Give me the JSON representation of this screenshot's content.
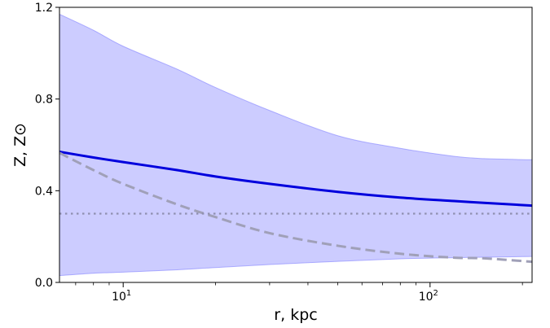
{
  "chart_data": {
    "type": "line",
    "title": "",
    "xlabel": "r, kpc",
    "ylabel": "Z, Z⊙",
    "x_scale": "log",
    "xlim": [
      6.2,
      215
    ],
    "ylim": [
      0.0,
      1.2
    ],
    "x_ticks": [
      {
        "value": 10,
        "base": "10",
        "exp": "1"
      },
      {
        "value": 100,
        "base": "10",
        "exp": "2"
      }
    ],
    "y_ticks": [
      {
        "value": 0.0,
        "label": "0.0"
      },
      {
        "value": 0.4,
        "label": "0.4"
      },
      {
        "value": 0.8,
        "label": "0.8"
      },
      {
        "value": 1.2,
        "label": "1.2"
      }
    ],
    "grid": false,
    "x": [
      6.2,
      8,
      10,
      15,
      20,
      30,
      50,
      80,
      120,
      150,
      215
    ],
    "band": {
      "upper": [
        1.17,
        1.1,
        1.03,
        0.93,
        0.85,
        0.75,
        0.64,
        0.585,
        0.55,
        0.54,
        0.535
      ],
      "lower": [
        0.03,
        0.04,
        0.045,
        0.055,
        0.065,
        0.078,
        0.092,
        0.103,
        0.108,
        0.11,
        0.113
      ],
      "color": "#8080ff"
    },
    "series": [
      {
        "style": "solid",
        "color": "#0000dd",
        "values": [
          0.57,
          0.545,
          0.525,
          0.49,
          0.462,
          0.43,
          0.395,
          0.37,
          0.355,
          0.347,
          0.335
        ]
      },
      {
        "style": "dashed",
        "color": "#a0a0b8",
        "values": [
          0.565,
          0.49,
          0.43,
          0.34,
          0.285,
          0.215,
          0.16,
          0.125,
          0.108,
          0.105,
          0.09
        ]
      },
      {
        "style": "dotted",
        "color": "#9090b0",
        "values": [
          0.3,
          0.3,
          0.3,
          0.3,
          0.3,
          0.3,
          0.3,
          0.3,
          0.3,
          0.3,
          0.3
        ]
      }
    ]
  }
}
